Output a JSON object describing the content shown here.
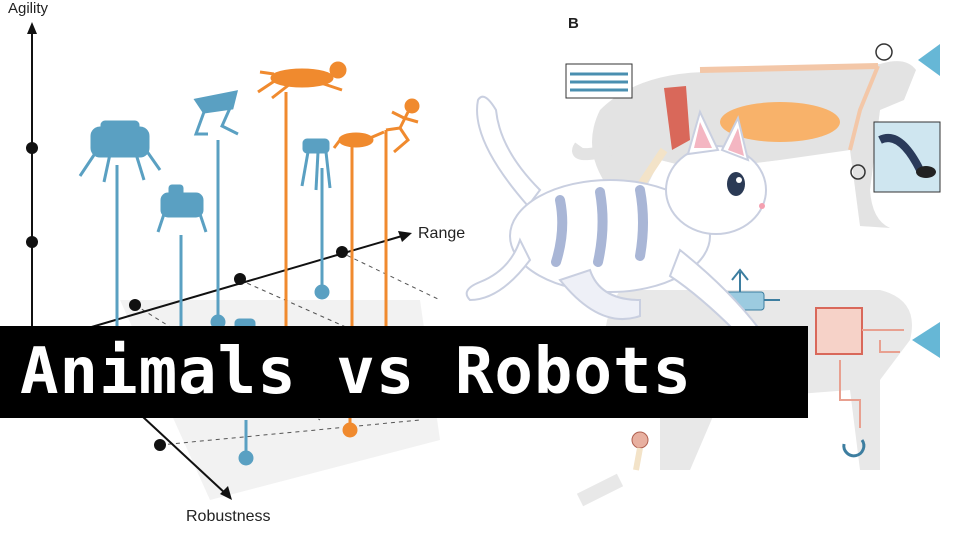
{
  "axes": {
    "agility_label": "Agility",
    "range_label": "Range",
    "robustness_label": "Robustness"
  },
  "panel_b": {
    "label": "B"
  },
  "banner": {
    "text": "Animals vs Robots"
  },
  "colors": {
    "robot_blue": "#5aa0c2",
    "animal_orange": "#f08a2e",
    "axis_black": "#111111",
    "banner_bg": "#000000",
    "banner_text": "#ffffff",
    "anatomy_gray": "#e3e3e3",
    "muscle_red": "#d9685a",
    "organ_orange": "#f8b26a",
    "cat_stripe": "#a9b6d6"
  }
}
